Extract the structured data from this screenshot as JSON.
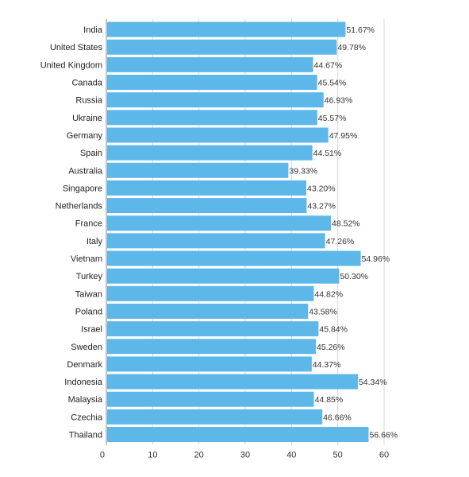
{
  "chart_data": {
    "type": "bar",
    "orientation": "horizontal",
    "categories": [
      "India",
      "United States",
      "United Kingdom",
      "Canada",
      "Russia",
      "Ukraine",
      "Germany",
      "Spain",
      "Australia",
      "Singapore",
      "Netherlands",
      "France",
      "Italy",
      "Vietnam",
      "Turkey",
      "Taiwan",
      "Poland",
      "Israel",
      "Sweden",
      "Denmark",
      "Indonesia",
      "Malaysia",
      "Czechia",
      "Thailand"
    ],
    "values": [
      51.67,
      49.78,
      44.67,
      45.54,
      46.93,
      45.57,
      47.95,
      44.51,
      39.33,
      43.2,
      43.27,
      48.52,
      47.26,
      54.96,
      50.3,
      44.82,
      43.58,
      45.84,
      45.26,
      44.37,
      54.34,
      44.85,
      46.66,
      56.66
    ],
    "value_labels": [
      "51.67%",
      "49.78%",
      "44.67%",
      "45.54%",
      "46.93%",
      "45.57%",
      "47.95%",
      "44.51%",
      "39.33%",
      "43.20%",
      "43.27%",
      "48.52%",
      "47.26%",
      "54.96%",
      "50.30%",
      "44.82%",
      "43.58%",
      "45.84%",
      "45.26%",
      "44.37%",
      "54.34%",
      "44.85%",
      "46.66%",
      "56.66%"
    ],
    "xticks": [
      0,
      10,
      20,
      30,
      40,
      50,
      60
    ],
    "xlim": [
      0,
      60
    ],
    "grid": true,
    "bar_color": "#5db7e8",
    "title": "",
    "xlabel": "",
    "ylabel": ""
  }
}
